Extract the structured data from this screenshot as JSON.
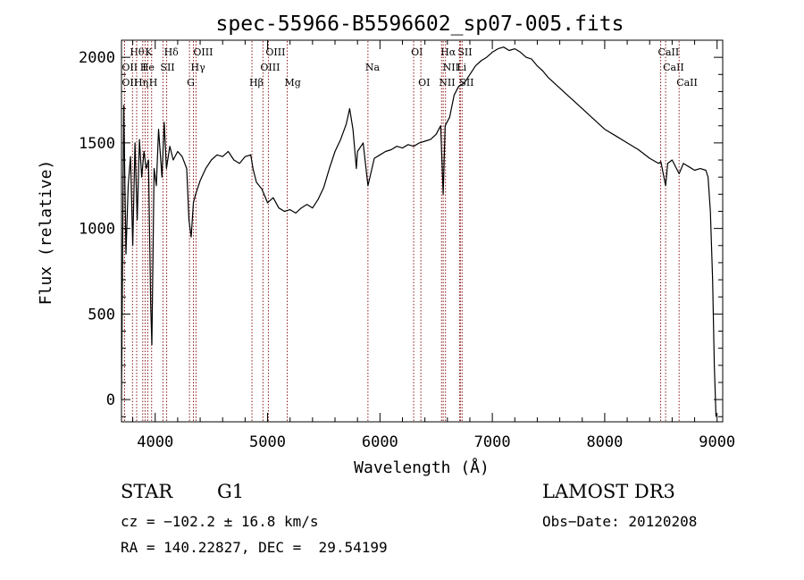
{
  "chart_data": {
    "type": "line",
    "title": "spec-55966-B5596602_sp07-005.fits",
    "xlabel": "Wavelength (Å)",
    "ylabel": "Flux (relative)",
    "xlim": [
      3700,
      9050
    ],
    "ylim": [
      -130,
      2100
    ],
    "xticks": [
      4000,
      5000,
      6000,
      7000,
      8000,
      9000
    ],
    "yticks": [
      0,
      500,
      1000,
      1500,
      2000
    ],
    "grid": false,
    "line_color": "#000000",
    "marker_color": "#8b1a1a",
    "series": [
      {
        "x": [
          3700,
          3720,
          3740,
          3760,
          3780,
          3800,
          3820,
          3840,
          3860,
          3880,
          3900,
          3920,
          3940,
          3960,
          3970,
          3990,
          4010,
          4030,
          4060,
          4080,
          4100,
          4130,
          4160,
          4200,
          4240,
          4280,
          4300,
          4320,
          4340,
          4360,
          4400,
          4450,
          4500,
          4550,
          4600,
          4650,
          4700,
          4750,
          4800,
          4850,
          4870,
          4900,
          4950,
          5000,
          5050,
          5100,
          5150,
          5200,
          5250,
          5300,
          5350,
          5400,
          5450,
          5500,
          5550,
          5600,
          5650,
          5700,
          5730,
          5760,
          5790,
          5800,
          5850,
          5893,
          5950,
          6000,
          6050,
          6100,
          6150,
          6200,
          6250,
          6300,
          6350,
          6400,
          6450,
          6500,
          6540,
          6563,
          6580,
          6620,
          6660,
          6700,
          6750,
          6800,
          6850,
          6900,
          6950,
          7000,
          7050,
          7100,
          7150,
          7200,
          7250,
          7300,
          7350,
          7400,
          7450,
          7500,
          7600,
          7700,
          7800,
          7900,
          8000,
          8100,
          8200,
          8300,
          8400,
          8480,
          8500,
          8542,
          8560,
          8600,
          8662,
          8700,
          8750,
          8800,
          8850,
          8900,
          8920,
          8940,
          8960,
          8975,
          8990
        ],
        "values": [
          0,
          1720,
          850,
          1250,
          1420,
          900,
          1500,
          1050,
          1520,
          1300,
          1450,
          1350,
          1400,
          550,
          320,
          1350,
          1250,
          1580,
          1300,
          1620,
          1350,
          1480,
          1400,
          1450,
          1420,
          1350,
          1050,
          950,
          1150,
          1200,
          1280,
          1350,
          1400,
          1430,
          1420,
          1450,
          1400,
          1380,
          1420,
          1430,
          1350,
          1270,
          1230,
          1150,
          1180,
          1120,
          1100,
          1110,
          1090,
          1120,
          1140,
          1120,
          1170,
          1240,
          1350,
          1450,
          1520,
          1610,
          1700,
          1580,
          1350,
          1450,
          1500,
          1250,
          1410,
          1430,
          1450,
          1460,
          1480,
          1470,
          1490,
          1480,
          1500,
          1510,
          1520,
          1550,
          1600,
          1200,
          1600,
          1650,
          1780,
          1830,
          1850,
          1900,
          1950,
          1980,
          2000,
          2030,
          2050,
          2060,
          2040,
          2050,
          2030,
          2000,
          1990,
          1950,
          1920,
          1880,
          1820,
          1760,
          1700,
          1640,
          1580,
          1540,
          1500,
          1460,
          1410,
          1380,
          1390,
          1250,
          1380,
          1400,
          1320,
          1380,
          1360,
          1340,
          1350,
          1340,
          1300,
          1100,
          700,
          200,
          -100
        ]
      }
    ],
    "lines": [
      {
        "name": "Hθ",
        "x": 3798,
        "row": 0
      },
      {
        "name": "K",
        "x": 3934,
        "row": 0
      },
      {
        "name": "Hδ",
        "x": 4102,
        "row": 0
      },
      {
        "name": "OIII",
        "x": 4363,
        "row": 0
      },
      {
        "name": "OIII",
        "x": 5007,
        "row": 0
      },
      {
        "name": "OI",
        "x": 6300,
        "row": 0
      },
      {
        "name": "Hα",
        "x": 6563,
        "row": 0
      },
      {
        "name": "SII",
        "x": 6716,
        "row": 0
      },
      {
        "name": "CaII",
        "x": 8498,
        "row": 0
      },
      {
        "name": "OII",
        "x": 3727,
        "row": 1
      },
      {
        "name": "He",
        "x": 3889,
        "row": 1
      },
      {
        "name": "I",
        "x": 3910,
        "row": 1
      },
      {
        "name": "SII",
        "x": 4069,
        "row": 1
      },
      {
        "name": "Hγ",
        "x": 4340,
        "row": 1
      },
      {
        "name": "OIII",
        "x": 4959,
        "row": 1
      },
      {
        "name": "NII",
        "x": 6583,
        "row": 1
      },
      {
        "name": "Li",
        "x": 6708,
        "row": 1
      },
      {
        "name": "CaII",
        "x": 8542,
        "row": 1
      },
      {
        "name": "OII",
        "x": 3727,
        "row": 2
      },
      {
        "name": "Hη",
        "x": 3835,
        "row": 2
      },
      {
        "name": "H",
        "x": 3968,
        "row": 2
      },
      {
        "name": "G",
        "x": 4305,
        "row": 2
      },
      {
        "name": "Hβ",
        "x": 4861,
        "row": 2
      },
      {
        "name": "Mg",
        "x": 5175,
        "row": 2
      },
      {
        "name": "Na",
        "x": 5893,
        "row": 1
      },
      {
        "name": "OI",
        "x": 6364,
        "row": 2
      },
      {
        "name": "NII",
        "x": 6548,
        "row": 2
      },
      {
        "name": "SII",
        "x": 6731,
        "row": 2
      },
      {
        "name": "CaII",
        "x": 8662,
        "row": 2
      }
    ]
  },
  "info": {
    "object_type": "STAR",
    "subclass": "G1",
    "survey": "LAMOST DR3",
    "cz": "cz = −102.2 ± 16.8 km/s",
    "obs_date": "Obs−Date: 20120208",
    "coords": "RA = 140.22827, DEC =  29.54199"
  }
}
